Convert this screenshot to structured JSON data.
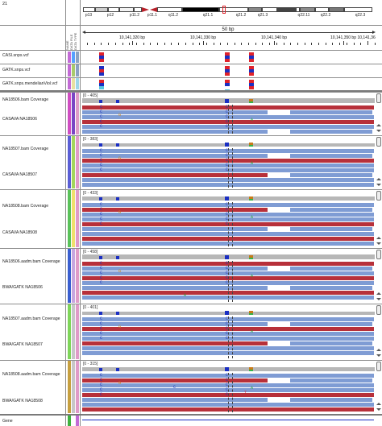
{
  "ideogram": {
    "chromosome": "21",
    "bands": [
      "p13",
      "p12",
      "p11.2",
      "p11.1",
      "q11.2",
      "q21.1",
      "q21.2",
      "q21.3",
      "q22.11",
      "q22.2",
      "q22.3"
    ]
  },
  "ruler": {
    "span": "50 bp",
    "positions": [
      "10,141,320 bp",
      "10,141,330 bp",
      "10,141,340 bp",
      "10,141,350 bp",
      "10,141,360"
    ]
  },
  "attribute_headers": [
    "NAME",
    "DATA FILE",
    "DATA TYPE"
  ],
  "variant_tracks": [
    "CASI.snps.vcf",
    "GATK.snps.vcf",
    "GATK.snps.mendelianViol.vcf"
  ],
  "panels": [
    {
      "coverage": "NA18506.bam Coverage",
      "alignments": "CASAVA NA18506",
      "range": "[0 - 405]"
    },
    {
      "coverage": "NA18507.bam Coverage",
      "alignments": "CASAVA NA18507",
      "range": "[0 - 383]"
    },
    {
      "coverage": "NA18508.bam Coverage",
      "alignments": "CASAVA NA18508",
      "range": "[0 - 433]"
    },
    {
      "coverage": "NA18506.aadm.bam Coverage",
      "alignments": "BWA/GATK NA18506",
      "range": "[0 - 458]"
    },
    {
      "coverage": "NA18507.aadm.bam Coverage",
      "alignments": "BWA/GATK NA18507",
      "range": "[0 - 401]"
    },
    {
      "coverage": "NA18508.aadm.bam Coverage",
      "alignments": "BWA/GATK NA18508",
      "range": "[0 - 315]"
    }
  ],
  "gene_track": "Gene",
  "colors": {
    "variant_red": "#e0222a",
    "variant_blue": "#1b2fc2",
    "coverage_gray": "#b7b7b7",
    "read_red": "#b7303a",
    "read_blue": "#7f9cd4"
  }
}
